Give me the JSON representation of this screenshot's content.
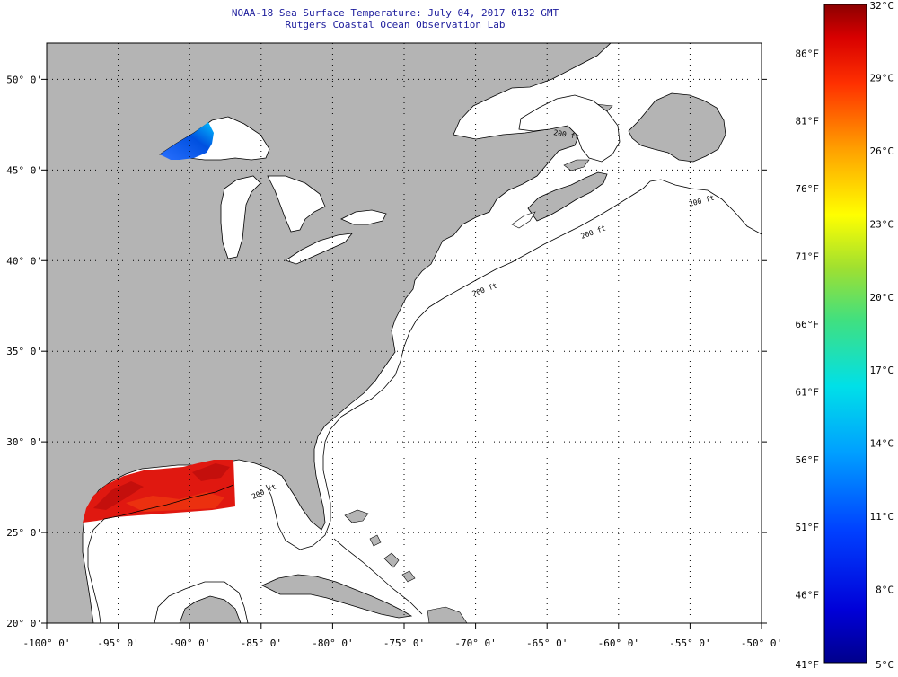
{
  "header": {
    "title": "NOAA-18 Sea Surface Temperature:  July 04, 2017 0132 GMT",
    "subtitle": "Rutgers Coastal Ocean Observation Lab"
  },
  "map": {
    "lon_range": [
      -100,
      -50
    ],
    "lat_range": [
      20,
      52
    ],
    "lon_labels": [
      "-100° 0'",
      "-95° 0'",
      "-90° 0'",
      "-85° 0'",
      "-80° 0'",
      "-75° 0'",
      "-70° 0'",
      "-65° 0'",
      "-60° 0'",
      "-55° 0'",
      "-50° 0'"
    ],
    "lat_labels": [
      "20° 0'",
      "25° 0'",
      "30° 0'",
      "35° 0'",
      "40° 0'",
      "45° 0'",
      "50° 0'"
    ],
    "contour_labels": [
      "200 ft",
      "200 ft",
      "200 ft",
      "200 ft",
      "200 ft"
    ],
    "colors": {
      "land": "#b4b4b4",
      "ocean": "#ffffff",
      "frame": "#000000"
    }
  },
  "colorbar": {
    "celsius_labels": [
      "32°C",
      "29°C",
      "26°C",
      "23°C",
      "20°C",
      "17°C",
      "14°C",
      "11°C",
      "8°C",
      "5°C"
    ],
    "fahrenheit_labels": [
      "86°F",
      "81°F",
      "76°F",
      "71°F",
      "66°F",
      "61°F",
      "56°F",
      "51°F",
      "46°F",
      "41°F"
    ],
    "range_c": [
      5,
      32
    ]
  }
}
